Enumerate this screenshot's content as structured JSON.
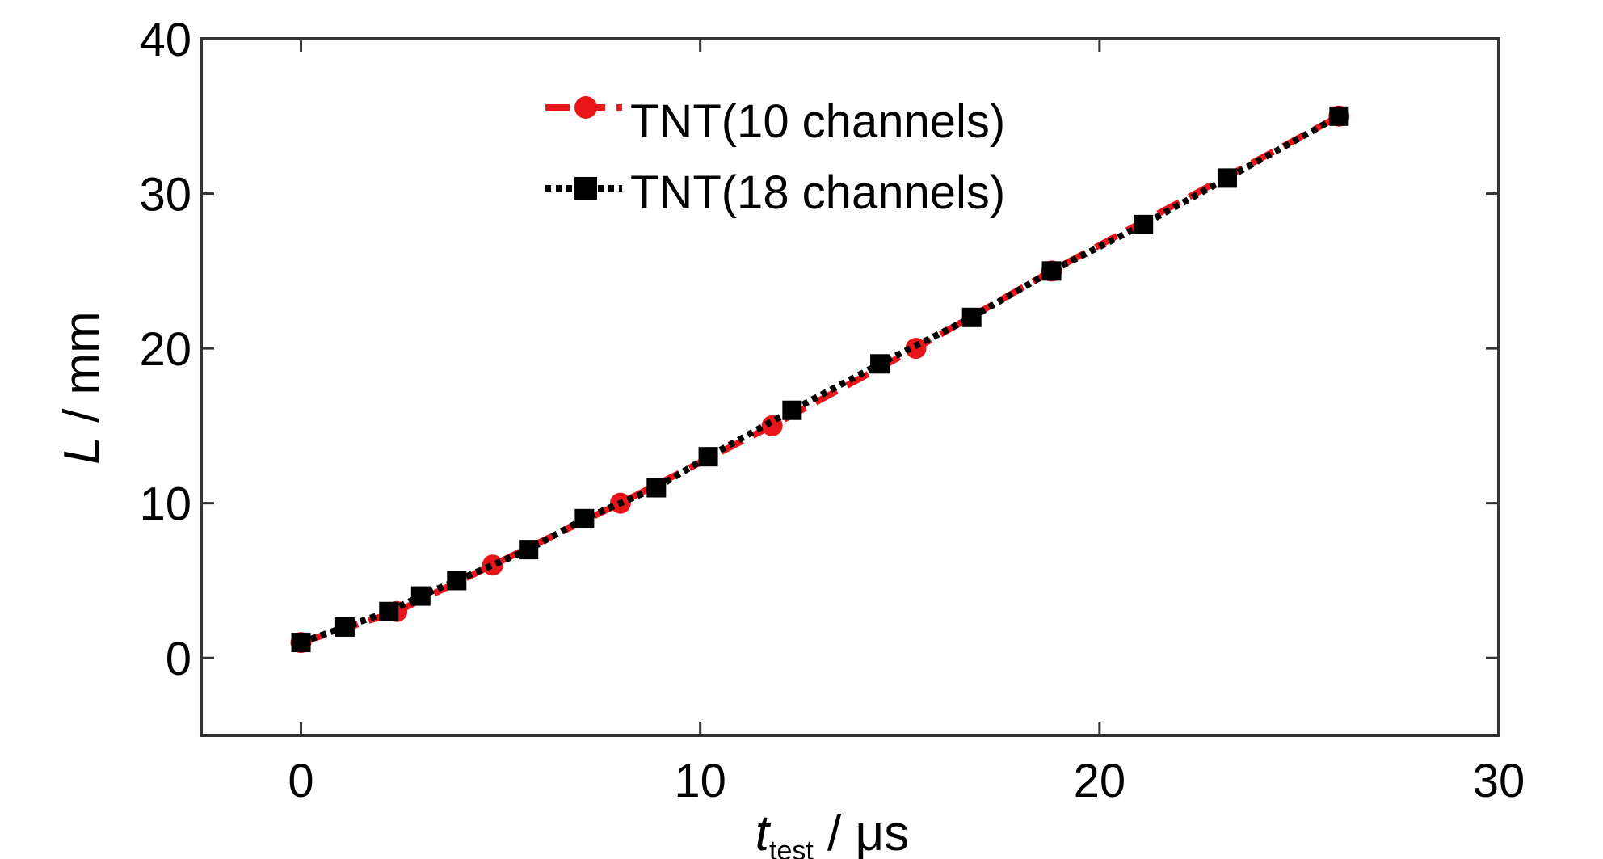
{
  "chart_data": {
    "type": "line",
    "xlabel_main": "t",
    "xlabel_sub": "test",
    "xlabel_unit": " / μs",
    "ylabel_main": "L",
    "ylabel_unit": " / mm",
    "xlim": [
      -2.5,
      30
    ],
    "ylim": [
      -5,
      40
    ],
    "xticks": [
      0,
      10,
      20,
      30
    ],
    "yticks": [
      0,
      10,
      20,
      30,
      40
    ],
    "x_tick_labels": [
      "0",
      "10",
      "20",
      "30"
    ],
    "y_tick_labels": [
      "0",
      "10",
      "20",
      "30",
      "40"
    ],
    "grid": false,
    "legend_position": "top-center",
    "series": [
      {
        "name": "TNT(10 channels)",
        "color": "#e8151b",
        "line_style": "dashed",
        "marker": "circle",
        "x": [
          0,
          2.4,
          4.8,
          8.0,
          11.8,
          15.4,
          18.8,
          26.0
        ],
        "y": [
          1,
          3,
          6,
          10,
          15,
          20,
          25,
          35
        ]
      },
      {
        "name": "TNT(18 channels)",
        "color": "#000000",
        "line_style": "dotted",
        "marker": "square",
        "x": [
          0,
          1.1,
          2.2,
          3.0,
          3.9,
          5.7,
          7.1,
          8.9,
          10.2,
          12.3,
          14.5,
          16.8,
          18.8,
          21.1,
          23.2,
          26.0
        ],
        "y": [
          1,
          2,
          3,
          4,
          5,
          7,
          9,
          11,
          13,
          16,
          19,
          22,
          25,
          28,
          31,
          35
        ]
      }
    ]
  }
}
